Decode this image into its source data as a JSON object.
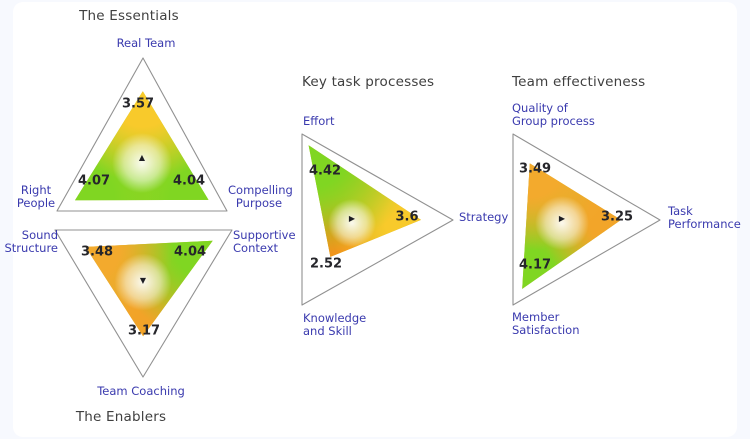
{
  "page": {
    "background": "#f7f9fe",
    "card_background": "#ffffff"
  },
  "colors": {
    "axis_label": "#3a3aae",
    "chart_title": "#3f3f3f",
    "value_text": "#26262b",
    "triangle_outline": "#919191",
    "marker": "#1e1e24",
    "green": "#80d622",
    "gold": "#f8ca2b",
    "orange": "#f0921a",
    "center_glow": "#ffffff"
  },
  "chart_data": {
    "type": "radar",
    "subtype": "triangular-radar-set",
    "scale": {
      "min": 0,
      "max": 5
    },
    "grid": false,
    "legend": false,
    "groups": [
      {
        "title": "The Essentials",
        "orientation": "up",
        "marker_glyph": "▲",
        "axes": [
          {
            "label": "Real Team",
            "value": 3.57
          },
          {
            "label": "Right People",
            "value": 4.07
          },
          {
            "label": "Compelling Purpose",
            "value": 4.04
          }
        ]
      },
      {
        "title": "The Enablers",
        "orientation": "down",
        "marker_glyph": "▼",
        "axes": [
          {
            "label": "Sound Structure",
            "value": 3.48
          },
          {
            "label": "Supportive Context",
            "value": 4.04
          },
          {
            "label": "Team Coaching",
            "value": 3.17
          }
        ]
      },
      {
        "title": "Key task processes",
        "orientation": "right",
        "marker_glyph": "▶",
        "axes": [
          {
            "label": "Effort",
            "value": 4.42
          },
          {
            "label": "Strategy",
            "value": 3.6
          },
          {
            "label": "Knowledge and Skill",
            "value": 2.52
          }
        ]
      },
      {
        "title": "Team effectiveness",
        "orientation": "right",
        "marker_glyph": "▶",
        "axes": [
          {
            "label": "Quality of Group process",
            "value": 3.49
          },
          {
            "label": "Task Performance",
            "value": 3.25
          },
          {
            "label": "Member Satisfaction",
            "value": 4.17
          }
        ]
      }
    ]
  }
}
